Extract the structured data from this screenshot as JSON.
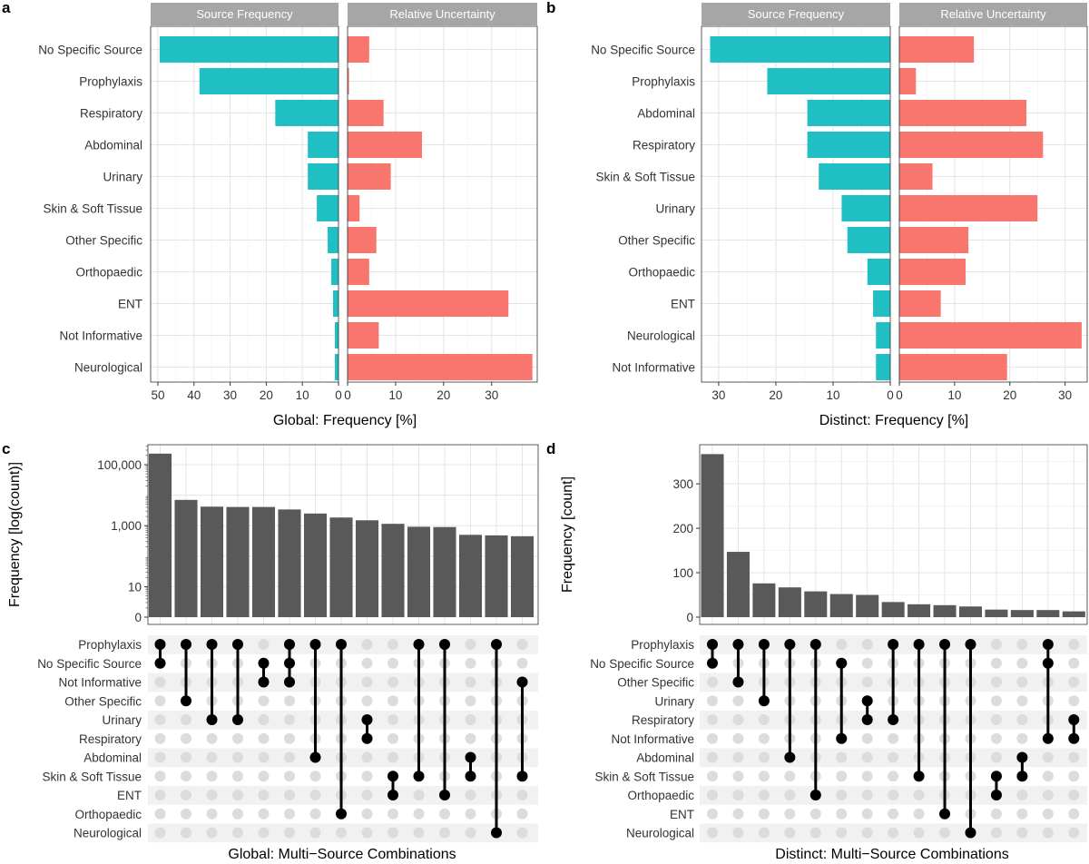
{
  "panels": {
    "a_letter": "a",
    "b_letter": "b",
    "c_letter": "c",
    "d_letter": "d"
  },
  "colors": {
    "frequency": "#1fbfc4",
    "uncertainty": "#f8766d",
    "bars": "#595959",
    "strip": "#a6a6a6",
    "grid": "#e5e5e5",
    "dot_on": "#000000",
    "dot_off": "#dcdcdc"
  },
  "chart_data": [
    {
      "id": "a",
      "type": "bar",
      "orientation": "horizontal",
      "xlabel": "Global: Frequency [%]",
      "facets": [
        "Source Frequency",
        "Relative Uncertainty"
      ],
      "categories": [
        "No Specific Source",
        "Prophylaxis",
        "Respiratory",
        "Abdominal",
        "Urinary",
        "Skin & Soft Tissue",
        "Other Specific",
        "Orthopaedic",
        "ENT",
        "Not Informative",
        "Neurological"
      ],
      "series": [
        {
          "name": "Source Frequency",
          "values": [
            49.5,
            38.5,
            17.5,
            8.5,
            8.5,
            6.0,
            3.0,
            2.0,
            1.5,
            1.0,
            1.0
          ],
          "xlim": [
            52,
            0
          ],
          "ticks": [
            50,
            40,
            30,
            20,
            10,
            0
          ]
        },
        {
          "name": "Relative Uncertainty",
          "values": [
            4.5,
            0.3,
            7.5,
            15.5,
            9.0,
            2.5,
            6.0,
            4.5,
            33.5,
            6.5,
            38.5
          ],
          "xlim": [
            0,
            39.5
          ],
          "ticks": [
            0,
            10,
            20,
            30
          ]
        }
      ]
    },
    {
      "id": "b",
      "type": "bar",
      "orientation": "horizontal",
      "xlabel": "Distinct: Frequency [%]",
      "facets": [
        "Source Frequency",
        "Relative Uncertainty"
      ],
      "categories": [
        "No Specific Source",
        "Prophylaxis",
        "Abdominal",
        "Respiratory",
        "Skin & Soft Tissue",
        "Urinary",
        "Other Specific",
        "Orthopaedic",
        "ENT",
        "Neurological",
        "Not Informative"
      ],
      "series": [
        {
          "name": "Source Frequency",
          "values": [
            31.5,
            21.5,
            14.5,
            14.5,
            12.5,
            8.5,
            7.5,
            4.0,
            3.0,
            2.5,
            2.5
          ],
          "xlim": [
            33,
            0
          ],
          "ticks": [
            30,
            20,
            10,
            0
          ]
        },
        {
          "name": "Relative Uncertainty",
          "values": [
            13.5,
            3.0,
            23.0,
            26.0,
            6.0,
            25.0,
            12.5,
            12.0,
            7.5,
            33.0,
            19.5
          ],
          "xlim": [
            0,
            34
          ],
          "ticks": [
            0,
            10,
            20,
            30
          ]
        }
      ]
    },
    {
      "id": "c",
      "type": "bar",
      "subtype": "upset",
      "xlabel": "Global: Multi−Source Combinations",
      "ylabel": "Frequency [log(count)]",
      "yscale": "log10",
      "yticks": [
        "0",
        "10",
        "1,000",
        "100,000"
      ],
      "sets": [
        "Prophylaxis",
        "No Specific Source",
        "Not Informative",
        "Other Specific",
        "Urinary",
        "Respiratory",
        "Abdominal",
        "Skin & Soft Tissue",
        "ENT",
        "Orthopaedic",
        "Neurological"
      ],
      "values": [
        230000,
        7000,
        4200,
        4100,
        4100,
        3400,
        2500,
        1850,
        1500,
        1150,
        920,
        900,
        500,
        480,
        450
      ],
      "combinations": [
        [
          0,
          1
        ],
        [
          0,
          3
        ],
        [
          0,
          4
        ],
        [
          0,
          4
        ],
        [
          1,
          2
        ],
        [
          0,
          1,
          2
        ],
        [
          0,
          6
        ],
        [
          0,
          9
        ],
        [
          5,
          4
        ],
        [
          7,
          8
        ],
        [
          0,
          7
        ],
        [
          0,
          8
        ],
        [
          6,
          7
        ],
        [
          0,
          10
        ],
        [
          2,
          7
        ]
      ],
      "combination_columns": [
        0,
        1,
        2,
        3,
        4,
        5,
        6,
        7,
        8,
        9,
        10,
        11,
        12,
        13,
        14
      ]
    },
    {
      "id": "d",
      "type": "bar",
      "subtype": "upset",
      "xlabel": "Distinct: Multi−Source Combinations",
      "ylabel": "Frequency [count]",
      "ylim": [
        0,
        380
      ],
      "yticks": [
        0,
        100,
        200,
        300
      ],
      "sets": [
        "Prophylaxis",
        "No Specific Source",
        "Other Specific",
        "Urinary",
        "Respiratory",
        "Not Informative",
        "Abdominal",
        "Skin & Soft Tissue",
        "Orthopaedic",
        "ENT",
        "Neurological"
      ],
      "values": [
        367,
        147,
        76,
        67,
        58,
        52,
        50,
        34,
        29,
        27,
        24,
        17,
        16,
        16,
        13
      ],
      "combinations": [
        [
          0,
          1
        ],
        [
          0,
          2
        ],
        [
          0,
          3
        ],
        [
          0,
          6
        ],
        [
          0,
          8
        ],
        [
          1,
          5
        ],
        [
          3,
          4
        ],
        [
          0,
          4
        ],
        [
          0,
          7
        ],
        [
          0,
          9
        ],
        [
          0,
          10
        ],
        [
          7,
          8
        ],
        [
          6,
          7
        ],
        [
          0,
          1,
          5
        ],
        [
          4,
          5
        ]
      ]
    }
  ]
}
